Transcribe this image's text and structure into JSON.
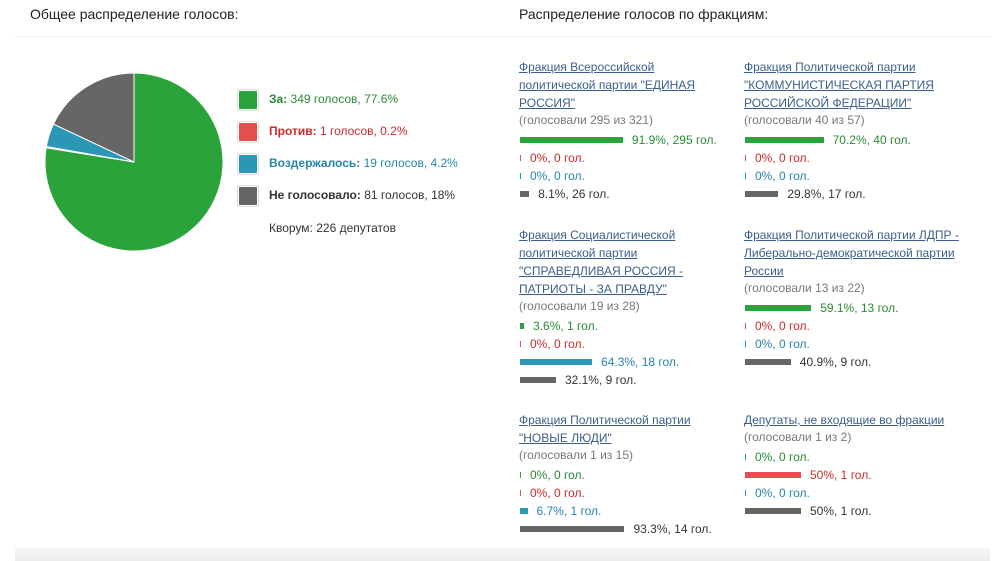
{
  "headers": {
    "overall": "Общее распределение голосов:",
    "factions": "Распределение голосов по фракциям:"
  },
  "colors": {
    "za": "#2aa43a",
    "protiv": "#e35050",
    "vozd": "#2b97b5",
    "ne": "#666666"
  },
  "chart_data": {
    "type": "pie",
    "title": "",
    "slices": [
      {
        "label": "За:",
        "text": "349 голосов, 77.6%",
        "value": 349,
        "percent": 77.6,
        "color": "#2aa43a",
        "text_color": "#2a8a35"
      },
      {
        "label": "Против:",
        "text": "1 голосов, 0.2%",
        "value": 1,
        "percent": 0.2,
        "color": "#e35050",
        "text_color": "#cc2a2a"
      },
      {
        "label": "Воздержалось:",
        "text": "19 голосов, 4.2%",
        "value": 19,
        "percent": 4.2,
        "color": "#2b97b5",
        "text_color": "#2585a8"
      },
      {
        "label": "Не голосовало:",
        "text": "81 голосов, 18%",
        "value": 81,
        "percent": 18,
        "color": "#666666",
        "text_color": "#333333"
      }
    ]
  },
  "quorum": "Кворум: 226 депутатов",
  "factions": [
    {
      "title": "Фракция Всероссийской политической партии \"ЕДИНАЯ РОССИЯ\"",
      "voted": "(голосовали 295 из 321)",
      "rows": [
        {
          "pct": 91.9,
          "text": "91.9%, 295 гол."
        },
        {
          "pct": 0,
          "text": "0%, 0 гол."
        },
        {
          "pct": 0,
          "text": "0%, 0 гол."
        },
        {
          "pct": 8.1,
          "text": "8.1%, 26 гол."
        }
      ]
    },
    {
      "title": "Фракция Политической партии \"КОММУНИСТИЧЕСКАЯ ПАРТИЯ РОССИЙСКОЙ ФЕДЕРАЦИИ\"",
      "voted": "(голосовали 40 из 57)",
      "rows": [
        {
          "pct": 70.2,
          "text": "70.2%, 40 гол."
        },
        {
          "pct": 0,
          "text": "0%, 0 гол."
        },
        {
          "pct": 0,
          "text": "0%, 0 гол."
        },
        {
          "pct": 29.8,
          "text": "29.8%, 17 гол."
        }
      ]
    },
    {
      "title": "Фракция Социалистической политической партии \"СПРАВЕДЛИВАЯ РОССИЯ - ПАТРИОТЫ - ЗА ПРАВДУ\"",
      "voted": "(голосовали 19 из 28)",
      "rows": [
        {
          "pct": 3.6,
          "text": "3.6%, 1 гол."
        },
        {
          "pct": 0,
          "text": "0%, 0 гол."
        },
        {
          "pct": 64.3,
          "text": "64.3%, 18 гол."
        },
        {
          "pct": 32.1,
          "text": "32.1%, 9 гол."
        }
      ]
    },
    {
      "title": "Фракция Политической партии ЛДПР - Либерально-демократической партии России",
      "voted": "(голосовали 13 из 22)",
      "rows": [
        {
          "pct": 59.1,
          "text": "59.1%, 13 гол."
        },
        {
          "pct": 0,
          "text": "0%, 0 гол."
        },
        {
          "pct": 0,
          "text": "0%, 0 гол."
        },
        {
          "pct": 40.9,
          "text": "40.9%, 9 гол."
        }
      ]
    },
    {
      "title": "Фракция Политической партии \"НОВЫЕ ЛЮДИ\"",
      "voted": "(голосовали 1 из 15)",
      "rows": [
        {
          "pct": 0,
          "text": "0%, 0 гол."
        },
        {
          "pct": 0,
          "text": "0%, 0 гол."
        },
        {
          "pct": 6.7,
          "text": "6.7%, 1 гол."
        },
        {
          "pct": 93.3,
          "text": "93.3%, 14 гол."
        }
      ]
    },
    {
      "title": "Депутаты, не входящие во фракции",
      "voted": "(голосовали 1 из 2)",
      "rows": [
        {
          "pct": 0,
          "text": "0%, 0 гол."
        },
        {
          "pct": 50,
          "text": "50%, 1 гол."
        },
        {
          "pct": 0,
          "text": "0%, 0 гол."
        },
        {
          "pct": 50,
          "text": "50%, 1 гол."
        }
      ]
    }
  ]
}
